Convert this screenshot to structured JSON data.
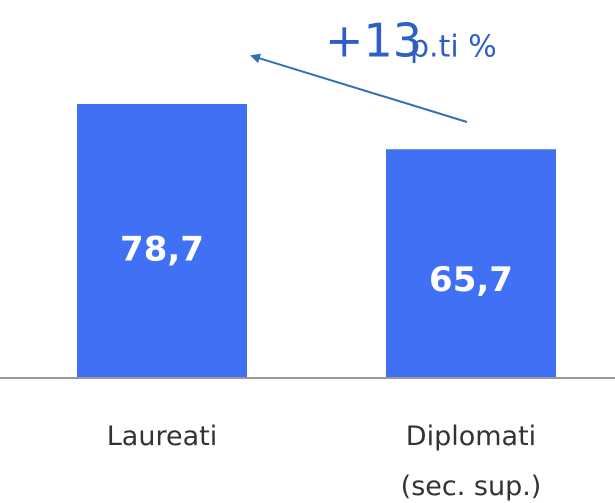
{
  "chart_data": {
    "type": "bar",
    "categories": [
      "Laureati",
      "Diplomati\n(sec. sup.)"
    ],
    "values": [
      78.7,
      65.7
    ],
    "value_labels": [
      "78,7",
      "65,7"
    ],
    "color": "#4070f4",
    "annotation": {
      "number": "+13",
      "unit": "p.ti %"
    }
  }
}
